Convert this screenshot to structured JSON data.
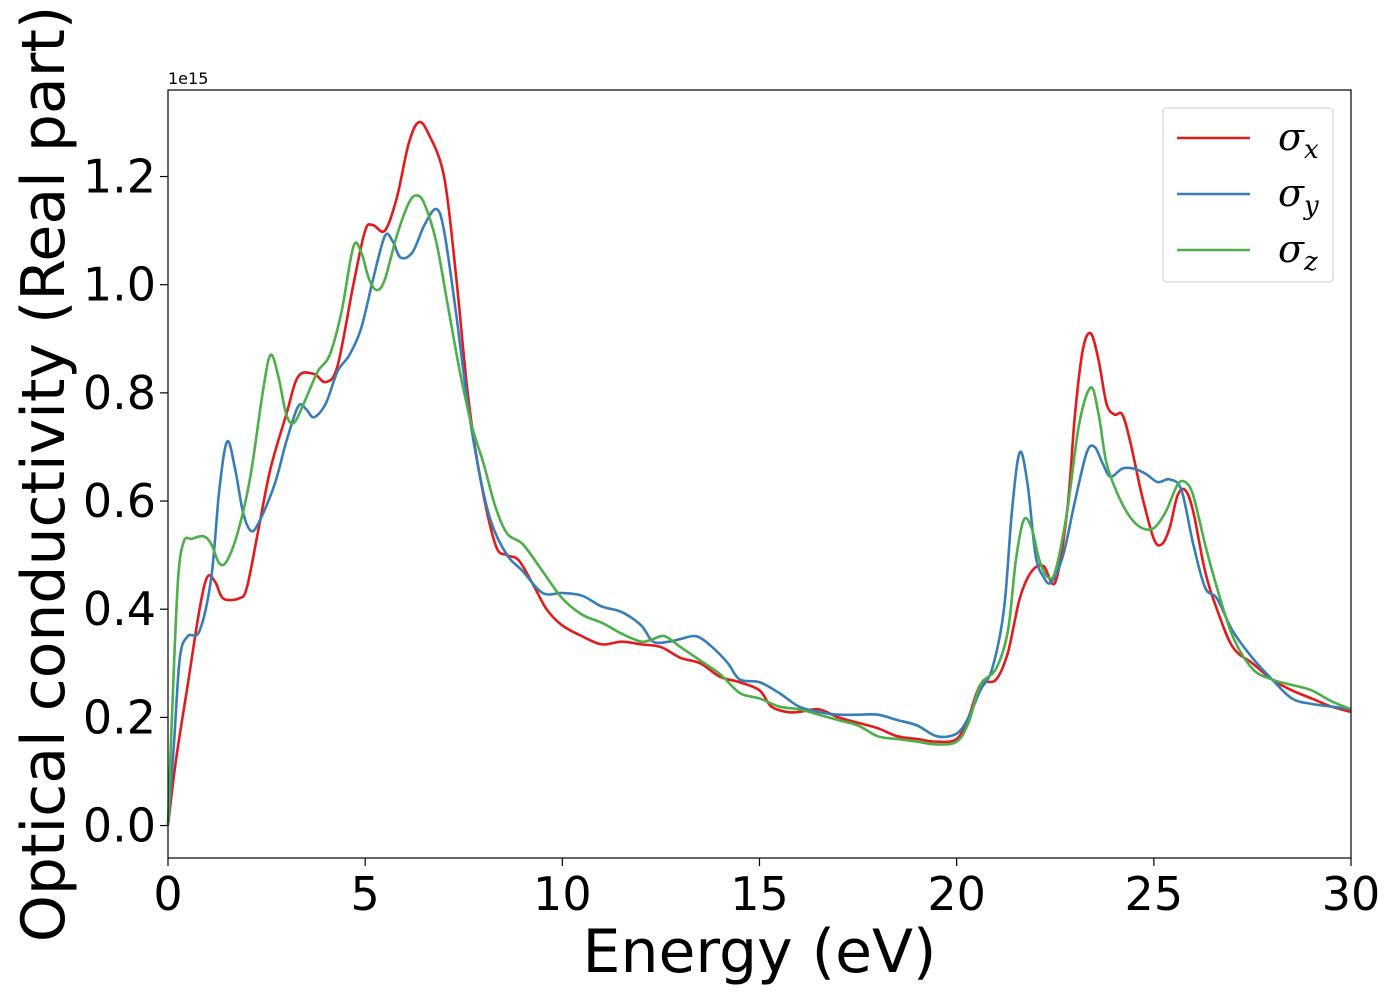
{
  "chart_data": {
    "type": "line",
    "title": "",
    "xlabel": "Energy (eV)",
    "ylabel": "Optical conductivity (Real part)",
    "y_offset_label": "1e15",
    "xlim": [
      0,
      30
    ],
    "ylim": [
      -0.06,
      1.36
    ],
    "xticks": [
      0,
      5,
      10,
      15,
      20,
      25,
      30
    ],
    "xtick_labels": [
      "0",
      "5",
      "10",
      "15",
      "20",
      "25",
      "30"
    ],
    "yticks": [
      0.0,
      0.2,
      0.4,
      0.6,
      0.8,
      1.0,
      1.2
    ],
    "ytick_labels": [
      "0.0",
      "0.2",
      "0.4",
      "0.6",
      "0.8",
      "1.0",
      "1.2"
    ],
    "grid": false,
    "legend_position": "top-right",
    "series": [
      {
        "name": "σx",
        "symbol": "σ",
        "subscript": "x",
        "color": "#e41a1c",
        "points": [
          [
            0,
            0.0
          ],
          [
            0.2,
            0.12
          ],
          [
            0.5,
            0.26
          ],
          [
            0.8,
            0.4
          ],
          [
            1.0,
            0.46
          ],
          [
            1.2,
            0.45
          ],
          [
            1.4,
            0.42
          ],
          [
            1.8,
            0.42
          ],
          [
            2.0,
            0.44
          ],
          [
            2.3,
            0.55
          ],
          [
            2.6,
            0.66
          ],
          [
            3.0,
            0.76
          ],
          [
            3.3,
            0.83
          ],
          [
            3.7,
            0.835
          ],
          [
            4.0,
            0.82
          ],
          [
            4.3,
            0.85
          ],
          [
            4.7,
            1.0
          ],
          [
            5.0,
            1.1
          ],
          [
            5.2,
            1.11
          ],
          [
            5.5,
            1.1
          ],
          [
            5.8,
            1.16
          ],
          [
            6.1,
            1.26
          ],
          [
            6.35,
            1.3
          ],
          [
            6.6,
            1.28
          ],
          [
            7.0,
            1.2
          ],
          [
            7.3,
            1.02
          ],
          [
            7.6,
            0.8
          ],
          [
            7.9,
            0.65
          ],
          [
            8.3,
            0.52
          ],
          [
            8.6,
            0.5
          ],
          [
            8.9,
            0.49
          ],
          [
            9.3,
            0.44
          ],
          [
            9.6,
            0.4
          ],
          [
            10.0,
            0.37
          ],
          [
            10.5,
            0.35
          ],
          [
            11.0,
            0.335
          ],
          [
            11.5,
            0.34
          ],
          [
            12.0,
            0.335
          ],
          [
            12.5,
            0.33
          ],
          [
            13.0,
            0.31
          ],
          [
            13.5,
            0.3
          ],
          [
            14.0,
            0.275
          ],
          [
            14.5,
            0.265
          ],
          [
            15.0,
            0.25
          ],
          [
            15.3,
            0.22
          ],
          [
            15.7,
            0.21
          ],
          [
            16.0,
            0.21
          ],
          [
            16.5,
            0.215
          ],
          [
            17.0,
            0.2
          ],
          [
            17.5,
            0.19
          ],
          [
            18.0,
            0.18
          ],
          [
            18.5,
            0.165
          ],
          [
            19.0,
            0.16
          ],
          [
            19.5,
            0.155
          ],
          [
            20.0,
            0.16
          ],
          [
            20.3,
            0.2
          ],
          [
            20.6,
            0.26
          ],
          [
            21.0,
            0.27
          ],
          [
            21.3,
            0.32
          ],
          [
            21.6,
            0.42
          ],
          [
            21.9,
            0.47
          ],
          [
            22.2,
            0.48
          ],
          [
            22.5,
            0.45
          ],
          [
            22.8,
            0.58
          ],
          [
            23.0,
            0.76
          ],
          [
            23.2,
            0.88
          ],
          [
            23.4,
            0.91
          ],
          [
            23.6,
            0.86
          ],
          [
            23.8,
            0.78
          ],
          [
            24.0,
            0.76
          ],
          [
            24.2,
            0.76
          ],
          [
            24.4,
            0.71
          ],
          [
            24.7,
            0.61
          ],
          [
            25.0,
            0.53
          ],
          [
            25.2,
            0.52
          ],
          [
            25.4,
            0.55
          ],
          [
            25.6,
            0.61
          ],
          [
            25.8,
            0.62
          ],
          [
            26.0,
            0.58
          ],
          [
            26.3,
            0.47
          ],
          [
            26.6,
            0.4
          ],
          [
            27.0,
            0.33
          ],
          [
            27.5,
            0.3
          ],
          [
            28.0,
            0.27
          ],
          [
            28.5,
            0.25
          ],
          [
            29.0,
            0.235
          ],
          [
            29.5,
            0.22
          ],
          [
            30.0,
            0.21
          ]
        ]
      },
      {
        "name": "σy",
        "symbol": "σ",
        "subscript": "y",
        "color": "#377eb8",
        "points": [
          [
            0,
            0.0
          ],
          [
            0.15,
            0.15
          ],
          [
            0.3,
            0.31
          ],
          [
            0.5,
            0.35
          ],
          [
            0.8,
            0.36
          ],
          [
            1.1,
            0.46
          ],
          [
            1.3,
            0.62
          ],
          [
            1.5,
            0.71
          ],
          [
            1.7,
            0.66
          ],
          [
            1.9,
            0.58
          ],
          [
            2.1,
            0.545
          ],
          [
            2.3,
            0.56
          ],
          [
            2.7,
            0.63
          ],
          [
            3.0,
            0.71
          ],
          [
            3.3,
            0.775
          ],
          [
            3.5,
            0.77
          ],
          [
            3.7,
            0.755
          ],
          [
            4.0,
            0.78
          ],
          [
            4.3,
            0.84
          ],
          [
            4.6,
            0.87
          ],
          [
            4.9,
            0.92
          ],
          [
            5.2,
            1.01
          ],
          [
            5.5,
            1.09
          ],
          [
            5.7,
            1.08
          ],
          [
            5.9,
            1.05
          ],
          [
            6.2,
            1.06
          ],
          [
            6.5,
            1.11
          ],
          [
            6.8,
            1.14
          ],
          [
            7.0,
            1.1
          ],
          [
            7.3,
            0.95
          ],
          [
            7.6,
            0.78
          ],
          [
            7.9,
            0.65
          ],
          [
            8.2,
            0.56
          ],
          [
            8.6,
            0.5
          ],
          [
            9.0,
            0.47
          ],
          [
            9.5,
            0.43
          ],
          [
            10.0,
            0.43
          ],
          [
            10.5,
            0.425
          ],
          [
            11.0,
            0.405
          ],
          [
            11.5,
            0.395
          ],
          [
            12.0,
            0.37
          ],
          [
            12.3,
            0.34
          ],
          [
            12.7,
            0.34
          ],
          [
            13.0,
            0.345
          ],
          [
            13.4,
            0.35
          ],
          [
            13.8,
            0.33
          ],
          [
            14.2,
            0.3
          ],
          [
            14.5,
            0.27
          ],
          [
            15.0,
            0.265
          ],
          [
            15.5,
            0.245
          ],
          [
            16.0,
            0.22
          ],
          [
            16.5,
            0.21
          ],
          [
            17.0,
            0.205
          ],
          [
            17.5,
            0.205
          ],
          [
            18.0,
            0.205
          ],
          [
            18.5,
            0.195
          ],
          [
            19.0,
            0.185
          ],
          [
            19.5,
            0.165
          ],
          [
            20.0,
            0.17
          ],
          [
            20.3,
            0.2
          ],
          [
            20.6,
            0.25
          ],
          [
            20.9,
            0.29
          ],
          [
            21.2,
            0.4
          ],
          [
            21.4,
            0.58
          ],
          [
            21.6,
            0.69
          ],
          [
            21.8,
            0.63
          ],
          [
            22.0,
            0.5
          ],
          [
            22.2,
            0.46
          ],
          [
            22.4,
            0.45
          ],
          [
            22.7,
            0.5
          ],
          [
            23.0,
            0.6
          ],
          [
            23.3,
            0.69
          ],
          [
            23.5,
            0.7
          ],
          [
            23.7,
            0.67
          ],
          [
            23.9,
            0.645
          ],
          [
            24.2,
            0.66
          ],
          [
            24.5,
            0.66
          ],
          [
            24.8,
            0.65
          ],
          [
            25.1,
            0.635
          ],
          [
            25.4,
            0.64
          ],
          [
            25.7,
            0.62
          ],
          [
            26.0,
            0.52
          ],
          [
            26.3,
            0.44
          ],
          [
            26.6,
            0.42
          ],
          [
            27.0,
            0.36
          ],
          [
            27.5,
            0.31
          ],
          [
            28.0,
            0.27
          ],
          [
            28.5,
            0.235
          ],
          [
            29.0,
            0.225
          ],
          [
            29.5,
            0.22
          ],
          [
            30.0,
            0.215
          ]
        ]
      },
      {
        "name": "σz",
        "symbol": "σ",
        "subscript": "z",
        "color": "#4daf4a",
        "points": [
          [
            0,
            0.0
          ],
          [
            0.1,
            0.2
          ],
          [
            0.25,
            0.45
          ],
          [
            0.4,
            0.525
          ],
          [
            0.6,
            0.53
          ],
          [
            0.9,
            0.535
          ],
          [
            1.1,
            0.52
          ],
          [
            1.3,
            0.485
          ],
          [
            1.5,
            0.49
          ],
          [
            1.8,
            0.55
          ],
          [
            2.1,
            0.65
          ],
          [
            2.4,
            0.8
          ],
          [
            2.6,
            0.87
          ],
          [
            2.8,
            0.83
          ],
          [
            3.0,
            0.76
          ],
          [
            3.2,
            0.745
          ],
          [
            3.5,
            0.79
          ],
          [
            3.8,
            0.84
          ],
          [
            4.1,
            0.87
          ],
          [
            4.4,
            0.95
          ],
          [
            4.7,
            1.07
          ],
          [
            4.9,
            1.06
          ],
          [
            5.1,
            1.01
          ],
          [
            5.3,
            0.99
          ],
          [
            5.5,
            1.01
          ],
          [
            5.8,
            1.09
          ],
          [
            6.1,
            1.15
          ],
          [
            6.3,
            1.165
          ],
          [
            6.5,
            1.15
          ],
          [
            6.8,
            1.08
          ],
          [
            7.1,
            0.96
          ],
          [
            7.4,
            0.84
          ],
          [
            7.7,
            0.74
          ],
          [
            8.0,
            0.67
          ],
          [
            8.3,
            0.59
          ],
          [
            8.6,
            0.54
          ],
          [
            9.0,
            0.52
          ],
          [
            9.5,
            0.47
          ],
          [
            10.0,
            0.42
          ],
          [
            10.5,
            0.39
          ],
          [
            11.0,
            0.375
          ],
          [
            11.5,
            0.355
          ],
          [
            12.0,
            0.34
          ],
          [
            12.3,
            0.345
          ],
          [
            12.6,
            0.35
          ],
          [
            13.0,
            0.33
          ],
          [
            13.5,
            0.305
          ],
          [
            14.0,
            0.28
          ],
          [
            14.5,
            0.245
          ],
          [
            15.0,
            0.235
          ],
          [
            15.5,
            0.22
          ],
          [
            16.0,
            0.215
          ],
          [
            16.5,
            0.205
          ],
          [
            17.0,
            0.195
          ],
          [
            17.5,
            0.185
          ],
          [
            18.0,
            0.165
          ],
          [
            18.5,
            0.16
          ],
          [
            19.0,
            0.155
          ],
          [
            19.5,
            0.15
          ],
          [
            20.0,
            0.155
          ],
          [
            20.3,
            0.19
          ],
          [
            20.6,
            0.26
          ],
          [
            21.0,
            0.29
          ],
          [
            21.3,
            0.36
          ],
          [
            21.5,
            0.49
          ],
          [
            21.7,
            0.565
          ],
          [
            21.9,
            0.55
          ],
          [
            22.1,
            0.49
          ],
          [
            22.3,
            0.46
          ],
          [
            22.5,
            0.47
          ],
          [
            22.8,
            0.58
          ],
          [
            23.1,
            0.74
          ],
          [
            23.4,
            0.81
          ],
          [
            23.6,
            0.76
          ],
          [
            23.8,
            0.67
          ],
          [
            24.1,
            0.61
          ],
          [
            24.4,
            0.57
          ],
          [
            24.7,
            0.55
          ],
          [
            25.0,
            0.55
          ],
          [
            25.3,
            0.58
          ],
          [
            25.6,
            0.63
          ],
          [
            25.8,
            0.635
          ],
          [
            26.0,
            0.61
          ],
          [
            26.3,
            0.52
          ],
          [
            26.6,
            0.44
          ],
          [
            27.0,
            0.35
          ],
          [
            27.5,
            0.29
          ],
          [
            28.0,
            0.27
          ],
          [
            28.5,
            0.26
          ],
          [
            29.0,
            0.25
          ],
          [
            29.5,
            0.23
          ],
          [
            30.0,
            0.215
          ]
        ]
      }
    ]
  }
}
